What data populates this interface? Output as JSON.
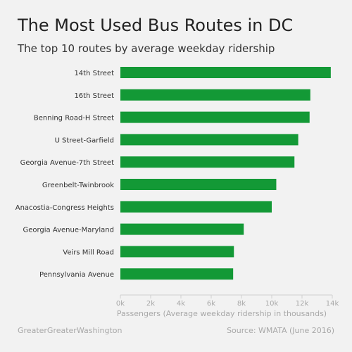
{
  "header": {
    "title": "The Most Used Bus Routes in DC",
    "subtitle": "The top 10 routes by average weekday ridership"
  },
  "footer": {
    "credit": "GreaterGreaterWashington",
    "source": "Source: WMATA (June 2016)"
  },
  "colors": {
    "bar": "#139936",
    "background": "#f2f2f2",
    "axis_text": "#a8a8a8",
    "label_text": "#333333"
  },
  "chart_data": {
    "type": "bar",
    "orientation": "horizontal",
    "title": "The Most Used Bus Routes in DC",
    "subtitle": "The top 10 routes by average weekday ridership",
    "xlabel": "Passengers (Average weekday ridership in thousands)",
    "ylabel": "",
    "xlim": [
      0,
      14000
    ],
    "x_ticks": [
      0,
      2000,
      4000,
      6000,
      8000,
      10000,
      12000,
      14000
    ],
    "x_tick_labels": [
      "0k",
      "2k",
      "4k",
      "6k",
      "8k",
      "10k",
      "12k",
      "14k"
    ],
    "grid": false,
    "categories": [
      "14th Street",
      "16th Street",
      "Benning Road-H Street",
      "U Street-Garfield",
      "Georgia Avenue-7th Street",
      "Greenbelt-Twinbrook",
      "Anacostia-Congress Heights",
      "Georgia Avenue-Maryland",
      "Veirs Mill Road",
      "Pennsylvania Avenue"
    ],
    "values": [
      13900,
      12550,
      12500,
      11750,
      11500,
      10300,
      10000,
      8150,
      7500,
      7450
    ]
  }
}
